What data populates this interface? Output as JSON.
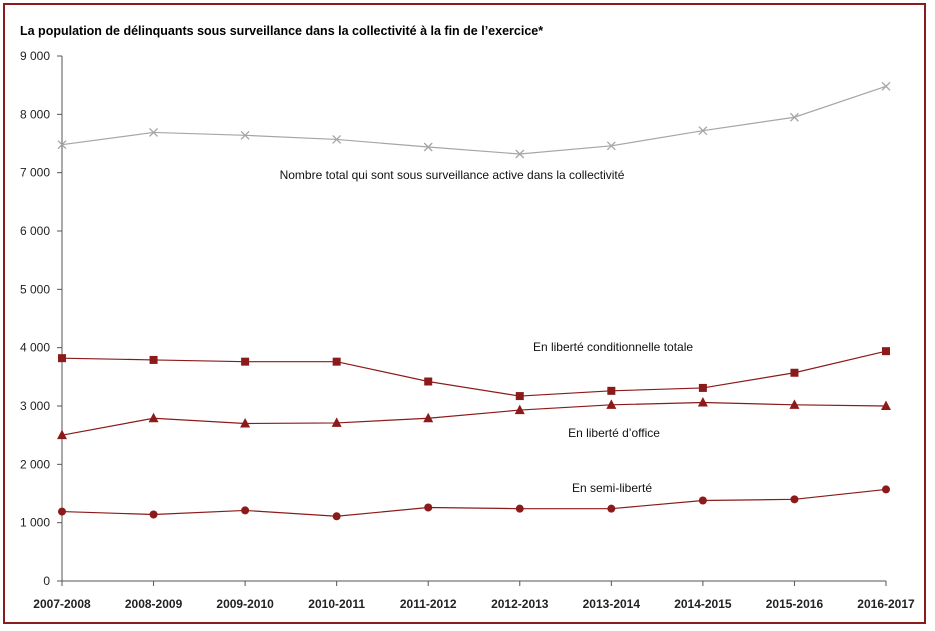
{
  "chart_data": {
    "type": "line",
    "title": "La population de délinquants sous surveillance dans la collectivité  à la fin de l’exercice*",
    "xlabel": "",
    "ylabel": "",
    "ylim": [
      0,
      9000
    ],
    "yticks": [
      0,
      1000,
      2000,
      3000,
      4000,
      5000,
      6000,
      7000,
      8000,
      9000
    ],
    "ytick_labels": [
      "0",
      "1 000",
      "2 000",
      "3 000",
      "4 000",
      "5 000",
      "6 000",
      "7 000",
      "8 000",
      "9 000"
    ],
    "grid": false,
    "categories": [
      "2007-2008",
      "2008-2009",
      "2009-2010",
      "2010-2011",
      "2011-2012",
      "2012-2013",
      "2013-2014",
      "2014-2015",
      "2015-2016",
      "2016-2017"
    ],
    "series": [
      {
        "name": "Nombre total qui sont sous surveillance active dans la collectivité",
        "marker": "x",
        "color": "#a6a6a6",
        "values": [
          7480,
          7690,
          7640,
          7570,
          7440,
          7320,
          7460,
          7720,
          7950,
          8480
        ]
      },
      {
        "name": "En liberté conditionnelle totale",
        "marker": "square",
        "color": "#8b1a1a",
        "values": [
          3820,
          3790,
          3760,
          3760,
          3420,
          3170,
          3260,
          3310,
          3570,
          3940
        ]
      },
      {
        "name": "En liberté d’office",
        "marker": "triangle",
        "color": "#8b1a1a",
        "values": [
          2500,
          2790,
          2700,
          2710,
          2790,
          2930,
          3020,
          3060,
          3020,
          3000
        ]
      },
      {
        "name": "En semi-liberté",
        "marker": "circle",
        "color": "#8b1a1a",
        "values": [
          1190,
          1140,
          1210,
          1110,
          1260,
          1240,
          1240,
          1380,
          1400,
          1570
        ]
      }
    ]
  },
  "colors": {
    "frame": "#8b1c1c",
    "axis": "#555555"
  }
}
